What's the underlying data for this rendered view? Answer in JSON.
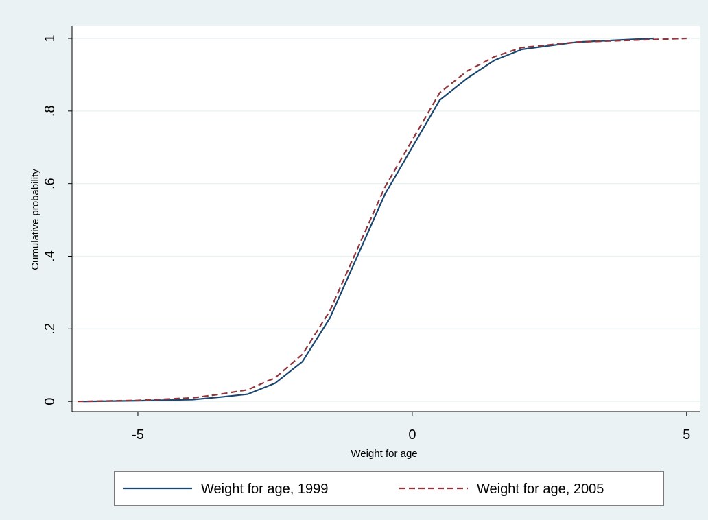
{
  "chart_data": {
    "type": "line",
    "xlabel": "Weight for age",
    "ylabel": "Cumulative probability",
    "xlim": [
      -6.2,
      5.24
    ],
    "ylim": [
      -0.028,
      1.034
    ],
    "xticks": [
      -5,
      0,
      5
    ],
    "yticks": [
      {
        "value": 0,
        "label": "0"
      },
      {
        "value": 0.2,
        "label": ".2"
      },
      {
        "value": 0.4,
        "label": ".4"
      },
      {
        "value": 0.6,
        "label": ".6"
      },
      {
        "value": 0.8,
        "label": ".8"
      },
      {
        "value": 1,
        "label": "1"
      }
    ],
    "grid": true,
    "legend": "bottom",
    "series": [
      {
        "name": "Weight for age, 1999",
        "color": "#1a476f",
        "dash": false,
        "x": [
          -6.0,
          -5,
          -4,
          -3.5,
          -3,
          -2.5,
          -2,
          -1.5,
          -1,
          -0.5,
          0,
          0.5,
          1,
          1.5,
          2,
          3,
          4.4
        ],
        "values": [
          0,
          0.002,
          0.005,
          0.012,
          0.02,
          0.05,
          0.11,
          0.23,
          0.4,
          0.57,
          0.7,
          0.83,
          0.89,
          0.94,
          0.97,
          0.99,
          1
        ]
      },
      {
        "name": "Weight for age, 2005",
        "color": "#90353b",
        "dash": true,
        "x": [
          -6.1,
          -5,
          -4,
          -3.5,
          -3,
          -2.5,
          -2,
          -1.5,
          -1,
          -0.5,
          0,
          0.5,
          1,
          1.5,
          2,
          3,
          5
        ],
        "values": [
          0,
          0.003,
          0.01,
          0.02,
          0.032,
          0.065,
          0.13,
          0.25,
          0.42,
          0.59,
          0.72,
          0.85,
          0.91,
          0.95,
          0.975,
          0.99,
          1
        ]
      }
    ]
  }
}
